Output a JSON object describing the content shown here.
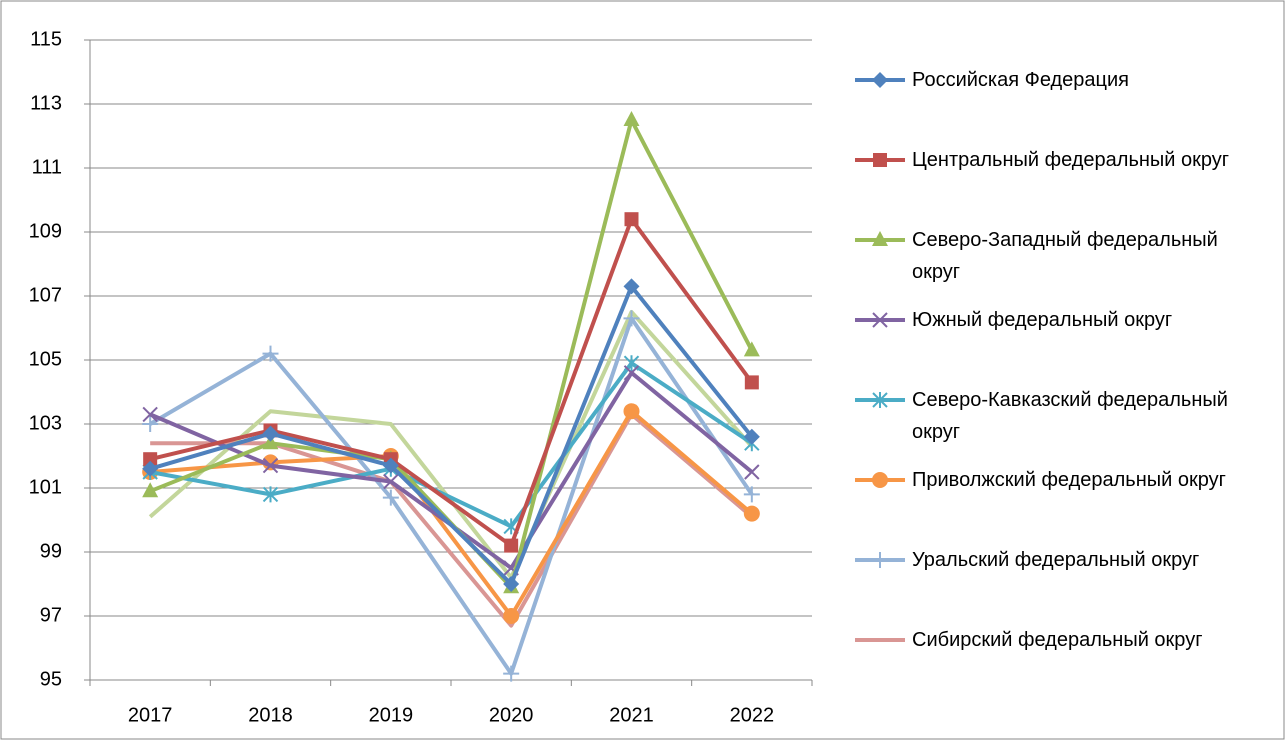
{
  "chart_data": {
    "type": "line",
    "categories": [
      "2017",
      "2018",
      "2019",
      "2020",
      "2021",
      "2022"
    ],
    "ylim": [
      95,
      115
    ],
    "yticks": [
      95,
      97,
      99,
      101,
      103,
      105,
      107,
      109,
      111,
      113,
      115
    ],
    "grid": true,
    "legend": "right",
    "series": [
      {
        "name": "Российская Федерация",
        "color": "#4F81BD",
        "marker": "diamond",
        "values": [
          101.6,
          102.7,
          101.7,
          98.0,
          107.3,
          102.6
        ]
      },
      {
        "name": "Центральный федеральный округ",
        "color": "#C0504D",
        "marker": "square",
        "values": [
          101.9,
          102.8,
          101.9,
          99.2,
          109.4,
          104.3
        ]
      },
      {
        "name": "Северо-Западный федеральный округ",
        "color": "#9BBB59",
        "marker": "triangle",
        "values": [
          100.9,
          102.4,
          101.9,
          97.9,
          112.5,
          105.3
        ]
      },
      {
        "name": "Южный федеральный округ",
        "color": "#8064A2",
        "marker": "x",
        "values": [
          103.3,
          101.7,
          101.2,
          98.5,
          104.6,
          101.5
        ]
      },
      {
        "name": "Северо-Кавказский федеральный округ",
        "color": "#4BACC6",
        "marker": "star",
        "values": [
          101.5,
          100.8,
          101.6,
          99.8,
          104.9,
          102.4
        ]
      },
      {
        "name": "Приволжский федеральный округ",
        "color": "#F79646",
        "marker": "circle",
        "values": [
          101.5,
          101.8,
          102.0,
          97.0,
          103.4,
          100.2
        ]
      },
      {
        "name": "Уральский федеральный округ",
        "color": "#95B3D7",
        "marker": "plus",
        "values": [
          103.0,
          105.2,
          100.7,
          95.2,
          106.3,
          100.8
        ]
      },
      {
        "name": "Сибирский федеральный округ",
        "color": "#D99694",
        "marker": "none",
        "values": [
          102.4,
          102.4,
          101.2,
          96.7,
          103.3,
          100.1
        ]
      },
      {
        "color": "#C3D69B",
        "marker": "none",
        "values": [
          100.1,
          103.4,
          103.0,
          98.2,
          106.5,
          102.3
        ]
      }
    ]
  }
}
